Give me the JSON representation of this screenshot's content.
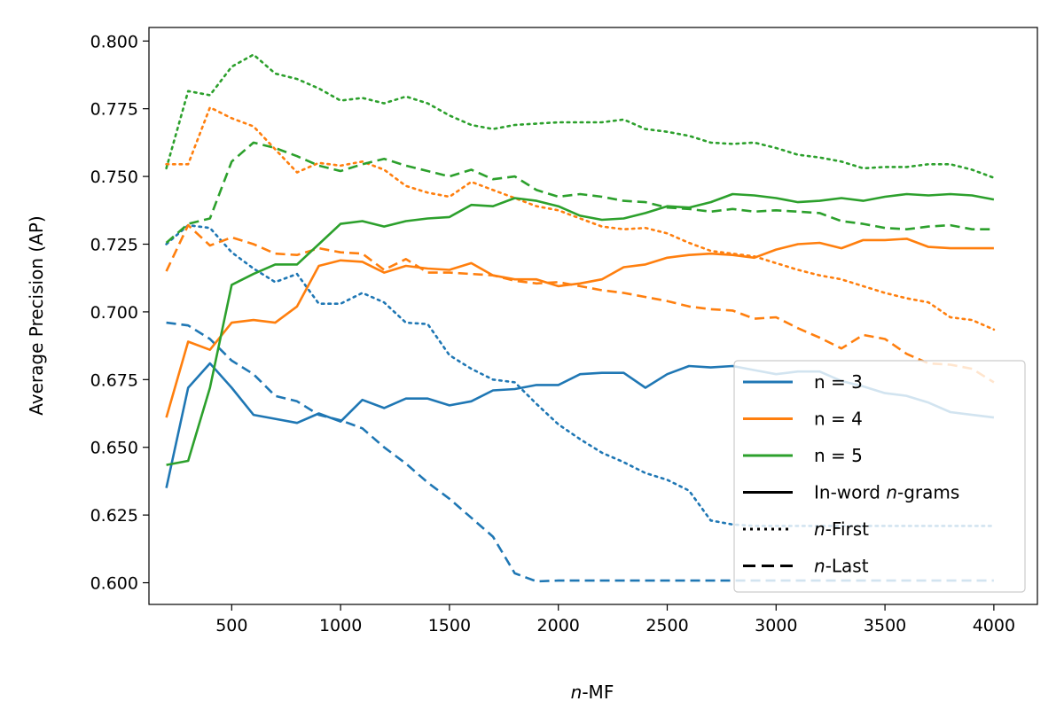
{
  "chart_data": {
    "type": "line",
    "xlabel_italic": "n",
    "xlabel_rest": "-MF",
    "ylabel": "Average Precision (AP)",
    "xlim": [
      120,
      4200
    ],
    "ylim": [
      0.592,
      0.805
    ],
    "xticks": [
      500,
      1000,
      1500,
      2000,
      2500,
      3000,
      3500,
      4000
    ],
    "xtick_labels": [
      "500",
      "1000",
      "1500",
      "2000",
      "2500",
      "3000",
      "3500",
      "4000"
    ],
    "yticks": [
      0.6,
      0.625,
      0.65,
      0.675,
      0.7,
      0.725,
      0.75,
      0.775,
      0.8
    ],
    "ytick_labels": [
      "0.600",
      "0.625",
      "0.650",
      "0.675",
      "0.700",
      "0.725",
      "0.750",
      "0.775",
      "0.800"
    ],
    "grid": false,
    "legend_position": "bottom-right",
    "colors": {
      "n3": "#1f77b4",
      "n4": "#ff7f0e",
      "n5": "#2ca02c"
    },
    "x": [
      200,
      300,
      400,
      500,
      600,
      700,
      800,
      900,
      1000,
      1100,
      1200,
      1300,
      1400,
      1500,
      1600,
      1700,
      1800,
      1900,
      2000,
      2100,
      2200,
      2300,
      2400,
      2500,
      2600,
      2700,
      2800,
      2900,
      3000,
      3100,
      3200,
      3300,
      3400,
      3500,
      3600,
      3700,
      3800,
      3900,
      4000
    ],
    "series": [
      {
        "key": "n3-inword",
        "color": "#1f77b4",
        "style": "solid",
        "values": [
          0.635,
          0.672,
          0.681,
          0.672,
          0.662,
          0.6605,
          0.659,
          0.6625,
          0.6595,
          0.6675,
          0.6645,
          0.668,
          0.668,
          0.6655,
          0.667,
          0.671,
          0.6715,
          0.673,
          0.673,
          0.677,
          0.6775,
          0.6775,
          0.672,
          0.677,
          0.68,
          0.6795,
          0.68,
          0.6785,
          0.677,
          0.678,
          0.678,
          0.6745,
          0.6725,
          0.67,
          0.669,
          0.6665,
          0.663,
          0.662,
          0.661
        ]
      },
      {
        "key": "n3-first",
        "color": "#1f77b4",
        "style": "dotted",
        "values": [
          0.725,
          0.732,
          0.731,
          0.722,
          0.716,
          0.711,
          0.714,
          0.703,
          0.703,
          0.707,
          0.7035,
          0.696,
          0.6955,
          0.684,
          0.679,
          0.675,
          0.674,
          0.666,
          0.6585,
          0.653,
          0.648,
          0.6445,
          0.6405,
          0.638,
          0.634,
          0.623,
          0.6215,
          0.621,
          0.621,
          0.621,
          0.621,
          0.621,
          0.621,
          0.621,
          0.621,
          0.621,
          0.621,
          0.621,
          0.621
        ]
      },
      {
        "key": "n3-last",
        "color": "#1f77b4",
        "style": "dashed",
        "values": [
          0.696,
          0.695,
          0.69,
          0.682,
          0.677,
          0.669,
          0.667,
          0.662,
          0.66,
          0.657,
          0.65,
          0.644,
          0.637,
          0.631,
          0.624,
          0.617,
          0.6035,
          0.6005,
          0.6008,
          0.6008,
          0.6008,
          0.6008,
          0.6008,
          0.6008,
          0.6008,
          0.6008,
          0.6008,
          0.6008,
          0.6008,
          0.6008,
          0.6008,
          0.6008,
          0.6008,
          0.6008,
          0.6008,
          0.6008,
          0.6008,
          0.6008,
          0.6008
        ]
      },
      {
        "key": "n4-inword",
        "color": "#ff7f0e",
        "style": "solid",
        "values": [
          0.661,
          0.689,
          0.686,
          0.696,
          0.697,
          0.696,
          0.702,
          0.717,
          0.719,
          0.7185,
          0.7145,
          0.717,
          0.716,
          0.7155,
          0.718,
          0.7135,
          0.712,
          0.712,
          0.7095,
          0.7105,
          0.712,
          0.7165,
          0.7175,
          0.72,
          0.721,
          0.7215,
          0.721,
          0.72,
          0.723,
          0.725,
          0.7255,
          0.7235,
          0.7265,
          0.7265,
          0.727,
          0.724,
          0.7235,
          0.7235,
          0.7235
        ]
      },
      {
        "key": "n4-first",
        "color": "#ff7f0e",
        "style": "dotted",
        "values": [
          0.7545,
          0.7545,
          0.7755,
          0.7715,
          0.7685,
          0.76,
          0.7515,
          0.755,
          0.754,
          0.7555,
          0.7525,
          0.7465,
          0.744,
          0.7425,
          0.748,
          0.745,
          0.742,
          0.739,
          0.7375,
          0.7345,
          0.7315,
          0.7305,
          0.731,
          0.729,
          0.7255,
          0.7225,
          0.7215,
          0.7205,
          0.718,
          0.7155,
          0.7135,
          0.712,
          0.7095,
          0.707,
          0.705,
          0.7035,
          0.698,
          0.697,
          0.6935
        ]
      },
      {
        "key": "n4-last",
        "color": "#ff7f0e",
        "style": "dashed",
        "values": [
          0.715,
          0.732,
          0.7245,
          0.7275,
          0.725,
          0.7215,
          0.721,
          0.7235,
          0.722,
          0.7215,
          0.7155,
          0.7195,
          0.7145,
          0.7145,
          0.714,
          0.7135,
          0.7115,
          0.7105,
          0.711,
          0.7095,
          0.708,
          0.707,
          0.7055,
          0.704,
          0.702,
          0.701,
          0.7005,
          0.6975,
          0.698,
          0.694,
          0.6905,
          0.6865,
          0.6915,
          0.69,
          0.6845,
          0.681,
          0.6805,
          0.679,
          0.674
        ]
      },
      {
        "key": "n5-inword",
        "color": "#2ca02c",
        "style": "solid",
        "values": [
          0.6435,
          0.645,
          0.672,
          0.71,
          0.714,
          0.7175,
          0.7175,
          0.725,
          0.7325,
          0.7335,
          0.7315,
          0.7335,
          0.7345,
          0.735,
          0.7395,
          0.739,
          0.742,
          0.741,
          0.739,
          0.7355,
          0.734,
          0.7345,
          0.7365,
          0.739,
          0.7385,
          0.7405,
          0.7435,
          0.743,
          0.742,
          0.7405,
          0.741,
          0.742,
          0.741,
          0.7425,
          0.7435,
          0.743,
          0.7435,
          0.743,
          0.7415
        ]
      },
      {
        "key": "n5-first",
        "color": "#2ca02c",
        "style": "dotted",
        "values": [
          0.753,
          0.7815,
          0.78,
          0.7905,
          0.795,
          0.788,
          0.786,
          0.7825,
          0.778,
          0.779,
          0.777,
          0.7795,
          0.777,
          0.7725,
          0.769,
          0.7675,
          0.769,
          0.7695,
          0.77,
          0.77,
          0.77,
          0.771,
          0.7675,
          0.7665,
          0.765,
          0.7625,
          0.762,
          0.7625,
          0.7605,
          0.758,
          0.757,
          0.7555,
          0.753,
          0.7535,
          0.7535,
          0.7545,
          0.7545,
          0.7525,
          0.7495
        ]
      },
      {
        "key": "n5-last",
        "color": "#2ca02c",
        "style": "dashed",
        "values": [
          0.7255,
          0.7325,
          0.7345,
          0.7555,
          0.7625,
          0.7605,
          0.7575,
          0.754,
          0.752,
          0.7545,
          0.7565,
          0.754,
          0.752,
          0.75,
          0.7525,
          0.749,
          0.75,
          0.745,
          0.7425,
          0.7435,
          0.7425,
          0.741,
          0.7405,
          0.7385,
          0.738,
          0.737,
          0.738,
          0.737,
          0.7375,
          0.737,
          0.7365,
          0.7335,
          0.7325,
          0.731,
          0.7305,
          0.7315,
          0.732,
          0.7305,
          0.7305
        ]
      }
    ],
    "legend": [
      {
        "label": "n = 3",
        "color": "#1f77b4",
        "style": "solid"
      },
      {
        "label": "n = 4",
        "color": "#ff7f0e",
        "style": "solid"
      },
      {
        "label": "n = 5",
        "color": "#2ca02c",
        "style": "solid"
      },
      {
        "label_prefix": "In-word ",
        "label_italic": "n",
        "label_suffix": "-grams",
        "color": "#000000",
        "style": "solid"
      },
      {
        "label_prefix": "",
        "label_italic": "n",
        "label_suffix": "-First",
        "color": "#000000",
        "style": "dotted"
      },
      {
        "label_prefix": "",
        "label_italic": "n",
        "label_suffix": "-Last",
        "color": "#000000",
        "style": "dashed"
      }
    ]
  }
}
